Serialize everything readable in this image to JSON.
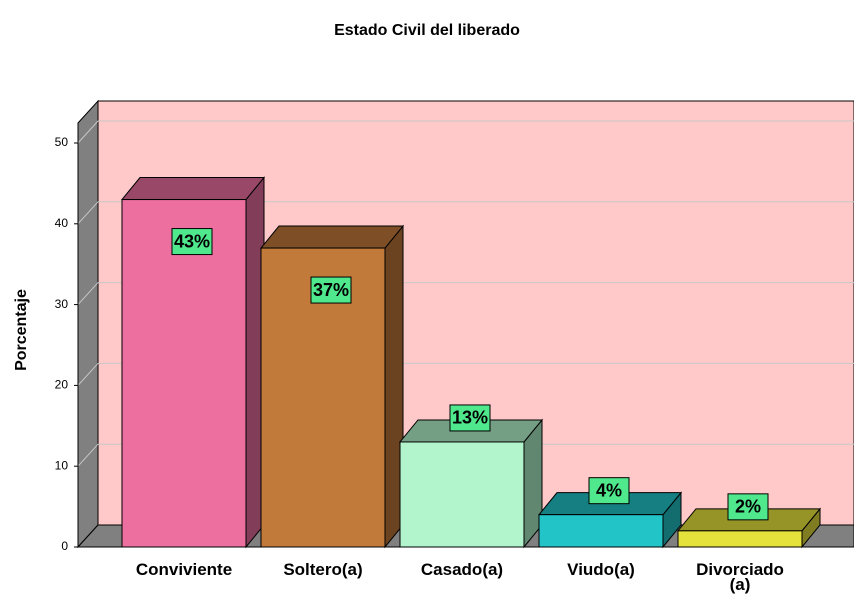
{
  "chart_data": {
    "type": "bar3d",
    "title": "Estado Civil del liberado",
    "y_label": "Porcentaje",
    "categories": [
      "Conviviente",
      "Soltero(a)",
      "Casado(a)",
      "Viudo(a)",
      "Divorciado\n(a)"
    ],
    "values": [
      43,
      37,
      13,
      4,
      2
    ],
    "value_labels": [
      "43%",
      "37%",
      "13%",
      "4%",
      "2%"
    ],
    "colors": [
      "#ec6fa0",
      "#c27a3a",
      "#b2f5cc",
      "#22c4c8",
      "#e6e23c"
    ],
    "ylim": [
      0,
      50
    ],
    "yticks": [
      0,
      10,
      20,
      30,
      40,
      50
    ],
    "grid": true
  }
}
